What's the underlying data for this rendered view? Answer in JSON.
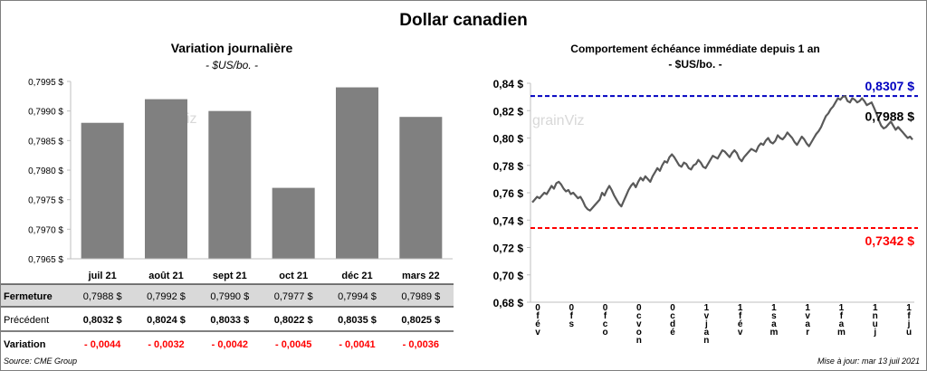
{
  "title": "Dollar canadien",
  "source": "Source: CME Group",
  "updated": "Mise à jour: mar 13 juil 2021",
  "watermark": "grainViz",
  "colors": {
    "bar": "#808080",
    "line": "#595959",
    "high": "#0000c0",
    "low": "#ff0000",
    "negative": "#ff0000",
    "row_band": "#d9d9d9"
  },
  "left_chart": {
    "title": "Variation  journalière",
    "subtitle": "- $US/bo. -",
    "table": {
      "row_labels": [
        "Fermeture",
        "Précédent",
        "Variation"
      ],
      "fermeture": [
        "0,7988  $",
        "0,7992  $",
        "0,7990  $",
        "0,7977  $",
        "0,7994  $",
        "0,7989  $"
      ],
      "precedent": [
        "0,8032  $",
        "0,8024  $",
        "0,8033  $",
        "0,8022  $",
        "0,8035  $",
        "0,8025  $"
      ],
      "variation": [
        "- 0,0044",
        "- 0,0032",
        "- 0,0042",
        "- 0,0045",
        "- 0,0041",
        "- 0,0036"
      ]
    }
  },
  "right_chart": {
    "title": "Comportement échéance immédiate depuis 1 an",
    "subtitle": "- $US/bo. -",
    "high_label": "0,8307 $",
    "low_label": "0,7342 $",
    "last_label": "0,7988 $"
  },
  "chart_data": [
    {
      "type": "bar",
      "categories": [
        "juil 21",
        "août 21",
        "sept 21",
        "oct 21",
        "déc 21",
        "mars 22"
      ],
      "values": [
        0.7988,
        0.7992,
        0.799,
        0.7977,
        0.7994,
        0.7989
      ],
      "ylim": [
        0.7965,
        0.7995
      ],
      "yticks": [
        0.7965,
        0.797,
        0.7975,
        0.798,
        0.7985,
        0.799,
        0.7995
      ],
      "ytick_labels": [
        "0,7965 $",
        "0,7970 $",
        "0,7975 $",
        "0,7980 $",
        "0,7985 $",
        "0,7990 $",
        "0,7995 $"
      ],
      "grid": false
    },
    {
      "type": "line",
      "ylim": [
        0.68,
        0.84
      ],
      "yticks": [
        0.68,
        0.7,
        0.72,
        0.74,
        0.76,
        0.78,
        0.8,
        0.82,
        0.84
      ],
      "ytick_labels": [
        "0,68 $",
        "0,70 $",
        "0,72 $",
        "0,74 $",
        "0,76 $",
        "0,78 $",
        "0,80 $",
        "0,82 $",
        "0,84 $"
      ],
      "x_tick_labels": [
        "0 f é v",
        "0 f s",
        "0 f c o",
        "0 c v o n",
        "0 c d é",
        "1 v j a n",
        "1 f é v",
        "1 s a m",
        "1 v a r",
        "1 f a m",
        "1 n u j",
        "1 f j u"
      ],
      "high": 0.8307,
      "low": 0.7342,
      "last": 0.7988,
      "values": [
        0.753,
        0.755,
        0.757,
        0.756,
        0.758,
        0.76,
        0.759,
        0.762,
        0.765,
        0.763,
        0.767,
        0.768,
        0.766,
        0.763,
        0.761,
        0.762,
        0.759,
        0.76,
        0.758,
        0.756,
        0.757,
        0.754,
        0.75,
        0.748,
        0.747,
        0.749,
        0.751,
        0.753,
        0.755,
        0.76,
        0.758,
        0.762,
        0.765,
        0.762,
        0.758,
        0.755,
        0.752,
        0.75,
        0.754,
        0.758,
        0.762,
        0.765,
        0.767,
        0.764,
        0.768,
        0.771,
        0.769,
        0.772,
        0.77,
        0.768,
        0.772,
        0.775,
        0.778,
        0.776,
        0.78,
        0.783,
        0.782,
        0.786,
        0.788,
        0.786,
        0.783,
        0.78,
        0.779,
        0.782,
        0.781,
        0.778,
        0.777,
        0.78,
        0.781,
        0.784,
        0.782,
        0.779,
        0.778,
        0.781,
        0.784,
        0.787,
        0.786,
        0.785,
        0.788,
        0.791,
        0.79,
        0.788,
        0.786,
        0.789,
        0.791,
        0.789,
        0.785,
        0.783,
        0.786,
        0.788,
        0.79,
        0.792,
        0.791,
        0.79,
        0.794,
        0.796,
        0.795,
        0.798,
        0.8,
        0.797,
        0.796,
        0.798,
        0.802,
        0.8,
        0.799,
        0.801,
        0.804,
        0.802,
        0.8,
        0.797,
        0.795,
        0.798,
        0.801,
        0.799,
        0.796,
        0.794,
        0.797,
        0.8,
        0.803,
        0.805,
        0.808,
        0.812,
        0.816,
        0.818,
        0.821,
        0.823,
        0.826,
        0.829,
        0.828,
        0.83,
        0.8307,
        0.827,
        0.826,
        0.829,
        0.828,
        0.826,
        0.827,
        0.829,
        0.827,
        0.824,
        0.825,
        0.826,
        0.822,
        0.818,
        0.813,
        0.809,
        0.807,
        0.808,
        0.81,
        0.812,
        0.809,
        0.806,
        0.808,
        0.806,
        0.804,
        0.802,
        0.8,
        0.801,
        0.7988
      ]
    }
  ]
}
